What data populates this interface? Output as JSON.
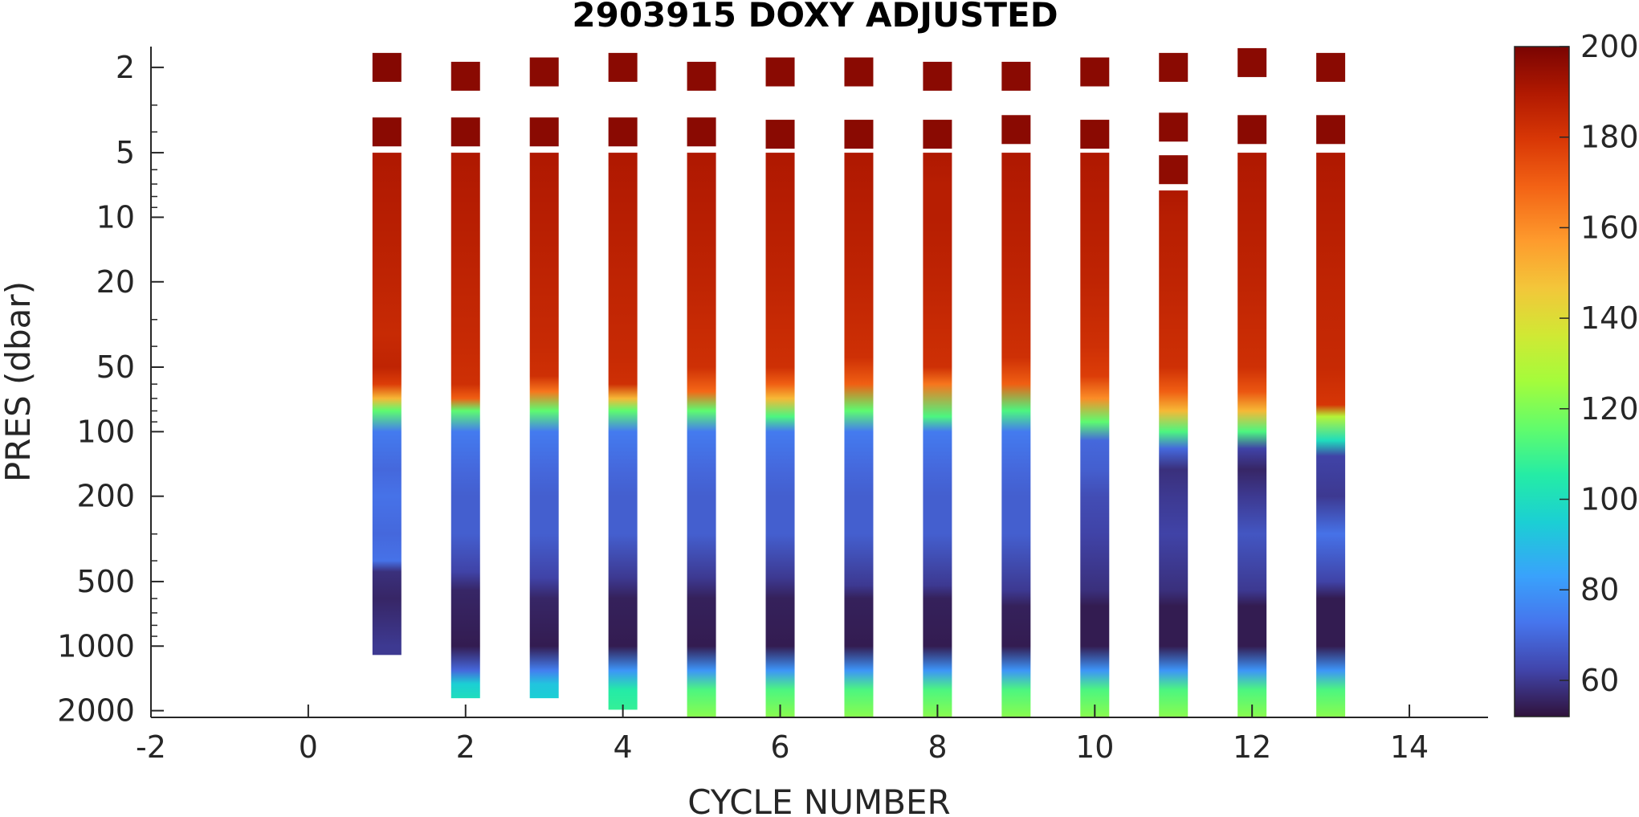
{
  "chart_data": {
    "type": "heatmap",
    "title": "2903915  DOXY ADJUSTED",
    "xlabel": "CYCLE NUMBER",
    "ylabel": "PRES (dbar)",
    "xlim": [
      -2,
      15
    ],
    "ylim": [
      1.6,
      2150
    ],
    "y_scale": "log",
    "y_reversed": true,
    "grid": false,
    "x_ticks": [
      -2,
      0,
      2,
      4,
      6,
      8,
      10,
      12,
      14
    ],
    "y_ticks": [
      2,
      5,
      10,
      20,
      50,
      100,
      200,
      500,
      1000,
      2000
    ],
    "colorbar": {
      "range": [
        52,
        200
      ],
      "ticks": [
        60,
        80,
        100,
        120,
        140,
        160,
        180,
        200
      ],
      "colormap": "turbo"
    },
    "profiles": [
      {
        "cycle": 1,
        "max_pres": 1100,
        "surface": [
          [
            2.0,
            198
          ],
          [
            4.0,
            197
          ]
        ],
        "profile": [
          [
            5,
            190
          ],
          [
            10,
            188
          ],
          [
            20,
            186
          ],
          [
            35,
            184
          ],
          [
            50,
            186
          ],
          [
            60,
            178
          ],
          [
            70,
            150
          ],
          [
            80,
            115
          ],
          [
            100,
            74
          ],
          [
            150,
            70
          ],
          [
            200,
            72
          ],
          [
            300,
            70
          ],
          [
            400,
            72
          ],
          [
            450,
            58
          ],
          [
            600,
            56
          ],
          [
            1000,
            60
          ]
        ]
      },
      {
        "cycle": 2,
        "max_pres": 1750,
        "surface": [
          [
            2.2,
            197
          ],
          [
            4.0,
            197
          ]
        ],
        "profile": [
          [
            5,
            190
          ],
          [
            10,
            188
          ],
          [
            20,
            186
          ],
          [
            40,
            184
          ],
          [
            60,
            182
          ],
          [
            70,
            170
          ],
          [
            80,
            115
          ],
          [
            100,
            74
          ],
          [
            150,
            70
          ],
          [
            200,
            68
          ],
          [
            300,
            68
          ],
          [
            450,
            62
          ],
          [
            550,
            56
          ],
          [
            1000,
            54
          ],
          [
            1300,
            70
          ],
          [
            1500,
            95
          ],
          [
            1750,
            100
          ]
        ]
      },
      {
        "cycle": 3,
        "max_pres": 1750,
        "surface": [
          [
            2.1,
            197
          ],
          [
            4.0,
            197
          ]
        ],
        "profile": [
          [
            5,
            190
          ],
          [
            10,
            188
          ],
          [
            20,
            186
          ],
          [
            40,
            184
          ],
          [
            55,
            182
          ],
          [
            65,
            165
          ],
          [
            80,
            115
          ],
          [
            100,
            74
          ],
          [
            150,
            70
          ],
          [
            200,
            68
          ],
          [
            300,
            68
          ],
          [
            480,
            62
          ],
          [
            600,
            56
          ],
          [
            1000,
            54
          ],
          [
            1300,
            75
          ],
          [
            1500,
            92
          ],
          [
            1750,
            95
          ]
        ]
      },
      {
        "cycle": 4,
        "max_pres": 1980,
        "surface": [
          [
            2.0,
            197
          ],
          [
            4.0,
            197
          ]
        ],
        "profile": [
          [
            5,
            190
          ],
          [
            10,
            188
          ],
          [
            20,
            186
          ],
          [
            45,
            184
          ],
          [
            60,
            182
          ],
          [
            70,
            150
          ],
          [
            80,
            115
          ],
          [
            100,
            74
          ],
          [
            150,
            70
          ],
          [
            200,
            68
          ],
          [
            300,
            68
          ],
          [
            480,
            60
          ],
          [
            600,
            55
          ],
          [
            1000,
            54
          ],
          [
            1300,
            80
          ],
          [
            1600,
            105
          ],
          [
            1980,
            108
          ]
        ]
      },
      {
        "cycle": 5,
        "max_pres": 2150,
        "surface": [
          [
            2.2,
            197
          ],
          [
            4.0,
            197
          ]
        ],
        "profile": [
          [
            5,
            190
          ],
          [
            10,
            188
          ],
          [
            20,
            186
          ],
          [
            50,
            182
          ],
          [
            65,
            168
          ],
          [
            80,
            115
          ],
          [
            100,
            74
          ],
          [
            150,
            70
          ],
          [
            200,
            68
          ],
          [
            300,
            68
          ],
          [
            480,
            60
          ],
          [
            600,
            55
          ],
          [
            1000,
            54
          ],
          [
            1300,
            80
          ],
          [
            1600,
            112
          ],
          [
            2150,
            122
          ]
        ]
      },
      {
        "cycle": 6,
        "max_pres": 2150,
        "surface": [
          [
            2.1,
            197
          ],
          [
            4.1,
            197
          ]
        ],
        "profile": [
          [
            5,
            190
          ],
          [
            10,
            188
          ],
          [
            20,
            186
          ],
          [
            50,
            182
          ],
          [
            60,
            170
          ],
          [
            70,
            150
          ],
          [
            85,
            112
          ],
          [
            100,
            74
          ],
          [
            150,
            70
          ],
          [
            200,
            68
          ],
          [
            300,
            68
          ],
          [
            480,
            60
          ],
          [
            600,
            55
          ],
          [
            1000,
            54
          ],
          [
            1300,
            80
          ],
          [
            1600,
            112
          ],
          [
            2150,
            122
          ]
        ]
      },
      {
        "cycle": 7,
        "max_pres": 2150,
        "surface": [
          [
            2.1,
            197
          ],
          [
            4.1,
            197
          ]
        ],
        "profile": [
          [
            5,
            190
          ],
          [
            10,
            188
          ],
          [
            20,
            186
          ],
          [
            45,
            182
          ],
          [
            60,
            170
          ],
          [
            80,
            115
          ],
          [
            100,
            74
          ],
          [
            150,
            70
          ],
          [
            200,
            68
          ],
          [
            300,
            68
          ],
          [
            520,
            60
          ],
          [
            600,
            55
          ],
          [
            1000,
            54
          ],
          [
            1300,
            80
          ],
          [
            1600,
            112
          ],
          [
            2150,
            122
          ]
        ]
      },
      {
        "cycle": 8,
        "max_pres": 2150,
        "surface": [
          [
            2.2,
            197
          ],
          [
            4.1,
            197
          ]
        ],
        "profile": [
          [
            5,
            190
          ],
          [
            7,
            188
          ],
          [
            10,
            188
          ],
          [
            20,
            186
          ],
          [
            50,
            182
          ],
          [
            60,
            165
          ],
          [
            85,
            112
          ],
          [
            100,
            74
          ],
          [
            150,
            70
          ],
          [
            200,
            68
          ],
          [
            300,
            68
          ],
          [
            520,
            60
          ],
          [
            600,
            55
          ],
          [
            1000,
            54
          ],
          [
            1300,
            80
          ],
          [
            1600,
            112
          ],
          [
            2150,
            122
          ]
        ]
      },
      {
        "cycle": 9,
        "max_pres": 2150,
        "surface": [
          [
            2.2,
            197
          ],
          [
            3.9,
            197
          ]
        ],
        "profile": [
          [
            5,
            190
          ],
          [
            10,
            188
          ],
          [
            20,
            186
          ],
          [
            45,
            182
          ],
          [
            60,
            170
          ],
          [
            80,
            112
          ],
          [
            100,
            74
          ],
          [
            150,
            70
          ],
          [
            200,
            68
          ],
          [
            300,
            68
          ],
          [
            550,
            60
          ],
          [
            650,
            55
          ],
          [
            1000,
            54
          ],
          [
            1300,
            80
          ],
          [
            1600,
            112
          ],
          [
            2150,
            122
          ]
        ]
      },
      {
        "cycle": 10,
        "max_pres": 2150,
        "surface": [
          [
            2.1,
            197
          ],
          [
            4.1,
            197
          ]
        ],
        "profile": [
          [
            5,
            190
          ],
          [
            10,
            188
          ],
          [
            20,
            186
          ],
          [
            40,
            182
          ],
          [
            55,
            178
          ],
          [
            70,
            160
          ],
          [
            90,
            115
          ],
          [
            110,
            70
          ],
          [
            150,
            68
          ],
          [
            200,
            64
          ],
          [
            300,
            62
          ],
          [
            550,
            58
          ],
          [
            650,
            54
          ],
          [
            1000,
            54
          ],
          [
            1300,
            80
          ],
          [
            1600,
            112
          ],
          [
            2150,
            122
          ]
        ]
      },
      {
        "cycle": 11,
        "max_pres": 2150,
        "surface": [
          [
            2.0,
            197
          ],
          [
            3.8,
            197
          ],
          [
            6.0,
            196
          ]
        ],
        "profile": [
          [
            7.5,
            190
          ],
          [
            10,
            188
          ],
          [
            20,
            186
          ],
          [
            50,
            182
          ],
          [
            65,
            170
          ],
          [
            80,
            150
          ],
          [
            100,
            112
          ],
          [
            120,
            70
          ],
          [
            150,
            58
          ],
          [
            200,
            60
          ],
          [
            300,
            62
          ],
          [
            550,
            58
          ],
          [
            650,
            54
          ],
          [
            1000,
            54
          ],
          [
            1300,
            80
          ],
          [
            1600,
            112
          ],
          [
            2150,
            122
          ]
        ]
      },
      {
        "cycle": 12,
        "max_pres": 2150,
        "surface": [
          [
            1.9,
            197
          ],
          [
            3.9,
            197
          ]
        ],
        "profile": [
          [
            5,
            190
          ],
          [
            10,
            188
          ],
          [
            20,
            186
          ],
          [
            50,
            182
          ],
          [
            65,
            172
          ],
          [
            80,
            150
          ],
          [
            100,
            112
          ],
          [
            120,
            62
          ],
          [
            150,
            56
          ],
          [
            200,
            60
          ],
          [
            300,
            66
          ],
          [
            550,
            60
          ],
          [
            650,
            54
          ],
          [
            1000,
            54
          ],
          [
            1300,
            80
          ],
          [
            1600,
            112
          ],
          [
            2150,
            122
          ]
        ]
      },
      {
        "cycle": 13,
        "max_pres": 2150,
        "surface": [
          [
            2.0,
            197
          ],
          [
            3.9,
            197
          ]
        ],
        "profile": [
          [
            5,
            190
          ],
          [
            10,
            188
          ],
          [
            20,
            186
          ],
          [
            50,
            184
          ],
          [
            75,
            180
          ],
          [
            85,
            130
          ],
          [
            110,
            100
          ],
          [
            130,
            62
          ],
          [
            200,
            60
          ],
          [
            300,
            72
          ],
          [
            500,
            62
          ],
          [
            600,
            54
          ],
          [
            1000,
            54
          ],
          [
            1300,
            80
          ],
          [
            1600,
            112
          ],
          [
            2150,
            122
          ]
        ]
      }
    ]
  }
}
